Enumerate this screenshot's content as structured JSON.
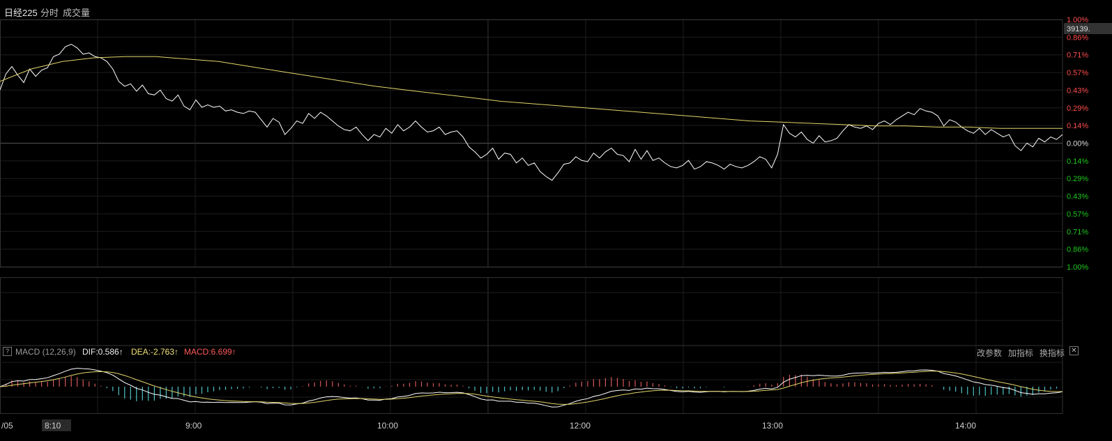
{
  "header": {
    "title": "日经225",
    "tabs": [
      "分时",
      "成交量"
    ]
  },
  "price_badge": "39139.",
  "macd": {
    "name": "MACD (12,26,9)",
    "dif": "DIF:0.586",
    "dea": "DEA:-2.763",
    "macd": "MACD:6.699",
    "buttons": [
      "改参数",
      "加指标",
      "换指标"
    ]
  },
  "colors": {
    "up": "#ff4d4d",
    "down": "#1ec81e",
    "price_line": "#ffffff",
    "avg_line": "#e3d66a",
    "hist_pos": "#d85858",
    "hist_neg": "#4fc3c9",
    "grid": "#1e1e1e"
  },
  "chart_data": {
    "type": "line",
    "title": "日经225",
    "y_right_ticks": [
      "1.00%",
      "0.86%",
      "0.71%",
      "0.57%",
      "0.43%",
      "0.29%",
      "0.14%",
      "0.00%",
      "0.14%",
      "0.29%",
      "0.43%",
      "0.57%",
      "0.71%",
      "0.86%",
      "1.00%"
    ],
    "x_ticks": [
      "/05",
      "8:10",
      "9:00",
      "10:00",
      "12:00",
      "13:00",
      "14:00"
    ],
    "ylim": [
      -1.0,
      1.0
    ],
    "series": [
      {
        "values": [
          0.43,
          0.56,
          0.62,
          0.55,
          0.49,
          0.6,
          0.54,
          0.59,
          0.61,
          0.7,
          0.72,
          0.78,
          0.8,
          0.77,
          0.72,
          0.73,
          0.7,
          0.69,
          0.66,
          0.6,
          0.5,
          0.46,
          0.48,
          0.42,
          0.47,
          0.4,
          0.39,
          0.43,
          0.36,
          0.34,
          0.39,
          0.3,
          0.27,
          0.35,
          0.29,
          0.31,
          0.29,
          0.3,
          0.26,
          0.27,
          0.25,
          0.24,
          0.26,
          0.25,
          0.19,
          0.13,
          0.2,
          0.17,
          0.07,
          0.12,
          0.18,
          0.16,
          0.24,
          0.2,
          0.25,
          0.22,
          0.18,
          0.14,
          0.11,
          0.1,
          0.13,
          0.07,
          0.02,
          0.07,
          0.05,
          0.12,
          0.08,
          0.15,
          0.1,
          0.13,
          0.18,
          0.13,
          0.09,
          0.1,
          0.13,
          0.07,
          0.09,
          0.1,
          0.05,
          -0.03,
          -0.07,
          -0.12,
          -0.09,
          -0.04,
          -0.13,
          -0.08,
          -0.09,
          -0.16,
          -0.12,
          -0.18,
          -0.16,
          -0.23,
          -0.27,
          -0.3,
          -0.24,
          -0.17,
          -0.16,
          -0.11,
          -0.14,
          -0.15,
          -0.08,
          -0.12,
          -0.07,
          -0.04,
          -0.09,
          -0.1,
          -0.15,
          -0.05,
          -0.13,
          -0.06,
          -0.14,
          -0.12,
          -0.16,
          -0.19,
          -0.2,
          -0.18,
          -0.14,
          -0.21,
          -0.19,
          -0.15,
          -0.16,
          -0.18,
          -0.21,
          -0.17,
          -0.19,
          -0.2,
          -0.18,
          -0.15,
          -0.11,
          -0.13,
          -0.2,
          -0.09,
          0.15,
          0.08,
          0.05,
          0.09,
          0.03,
          0.0,
          0.06,
          0.01,
          0.02,
          0.04,
          0.1,
          0.15,
          0.13,
          0.12,
          0.14,
          0.11,
          0.16,
          0.18,
          0.15,
          0.19,
          0.22,
          0.25,
          0.23,
          0.28,
          0.26,
          0.25,
          0.22,
          0.14,
          0.19,
          0.17,
          0.13,
          0.1,
          0.08,
          0.12,
          0.07,
          0.11,
          0.08,
          0.05,
          0.07,
          -0.02,
          -0.06,
          0.0,
          -0.03,
          0.04,
          0.01,
          0.05,
          0.03,
          0.07
        ]
      },
      {
        "values": [
          0.5,
          0.6,
          0.66,
          0.69,
          0.7,
          0.7,
          0.68,
          0.66,
          0.62,
          0.58,
          0.54,
          0.5,
          0.46,
          0.43,
          0.4,
          0.37,
          0.34,
          0.32,
          0.3,
          0.28,
          0.26,
          0.24,
          0.22,
          0.2,
          0.18,
          0.17,
          0.16,
          0.15,
          0.14,
          0.14,
          0.13,
          0.13,
          0.12,
          0.12,
          0.12
        ]
      }
    ]
  }
}
